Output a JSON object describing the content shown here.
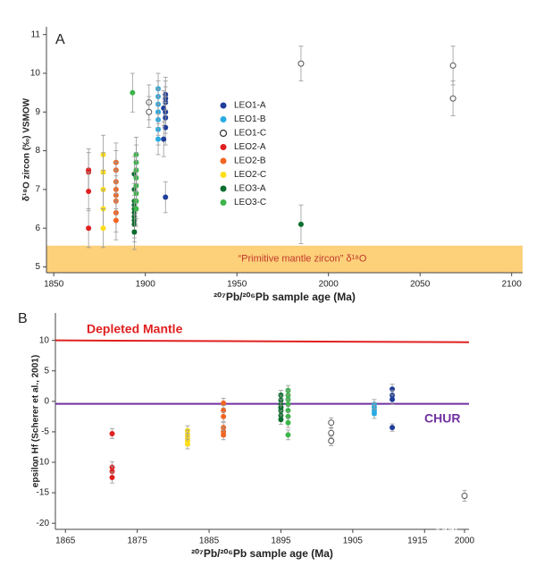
{
  "chart_data": [
    {
      "type": "scatter",
      "panel": "A",
      "ylabel": "δ¹⁸O zircon (‰) VSMOW",
      "xlabel": "²⁰⁷Pb/²⁰⁶Pb sample age (Ma)",
      "xlim": [
        1846,
        2106
      ],
      "xticks": [
        1850,
        1900,
        1950,
        2000,
        2050,
        2100
      ],
      "ylim": [
        4.85,
        11.2
      ],
      "yticks": [
        5,
        6,
        7,
        8,
        9,
        10,
        11
      ],
      "band": {
        "label": "“Primitive mantle zircon” δ¹⁸O",
        "range": [
          4.85,
          5.55
        ],
        "color": "#fdd07a"
      },
      "series": [
        {
          "name": "LEO1-A",
          "color": "#1f3e99",
          "marker": "filled",
          "x": [
            1911,
            1911,
            1911,
            1910,
            1911,
            1911,
            1911,
            1910,
            1911
          ],
          "values": [
            9.45,
            9.35,
            9.25,
            9.1,
            9.0,
            8.85,
            8.6,
            8.3,
            6.8
          ],
          "errors": [
            0.45,
            0.45,
            0.4,
            0.45,
            0.4,
            0.4,
            0.45,
            0.45,
            0.4
          ]
        },
        {
          "name": "LEO1-B",
          "color": "#29abe2",
          "marker": "filled",
          "x": [
            1907,
            1907,
            1907,
            1907,
            1907,
            1907,
            1907
          ],
          "values": [
            9.6,
            9.4,
            9.2,
            9.0,
            8.8,
            8.55,
            8.3
          ],
          "errors": [
            0.4,
            0.4,
            0.4,
            0.4,
            0.4,
            0.4,
            0.4
          ]
        },
        {
          "name": "LEO1-C",
          "color": "#555555",
          "marker": "open",
          "x": [
            1902,
            1902,
            1985,
            2068,
            2068
          ],
          "values": [
            9.25,
            9.0,
            10.25,
            10.2,
            9.35
          ],
          "errors": [
            0.45,
            0.4,
            0.45,
            0.5,
            0.45
          ]
        },
        {
          "name": "LEO2-A",
          "color": "#e02020",
          "marker": "filled",
          "x": [
            1869,
            1869,
            1869,
            1869
          ],
          "values": [
            7.5,
            7.45,
            6.95,
            6.0
          ],
          "errors": [
            0.55,
            0.5,
            0.5,
            0.5
          ]
        },
        {
          "name": "LEO2-B",
          "color": "#f26522",
          "marker": "filled",
          "x": [
            1884,
            1884,
            1884,
            1884,
            1884,
            1884,
            1884,
            1884
          ],
          "values": [
            7.7,
            7.5,
            7.2,
            7.0,
            6.85,
            6.7,
            6.4,
            6.2
          ],
          "errors": [
            0.5,
            0.5,
            0.5,
            0.5,
            0.5,
            0.5,
            0.5,
            0.5
          ]
        },
        {
          "name": "LEO2-C",
          "color": "#ffde17",
          "marker": "filled",
          "x": [
            1877,
            1877,
            1877,
            1877,
            1877
          ],
          "values": [
            7.9,
            7.45,
            7.0,
            6.5,
            6.0
          ],
          "errors": [
            0.5,
            0.5,
            0.5,
            0.5,
            0.5
          ]
        },
        {
          "name": "LEO3-A",
          "color": "#0b6e2e",
          "marker": "filled",
          "x": [
            1894,
            1894,
            1894,
            1894,
            1894,
            1894,
            1894,
            1894,
            1894,
            1894,
            1985
          ],
          "values": [
            7.4,
            7.0,
            6.7,
            6.6,
            6.5,
            6.4,
            6.3,
            6.2,
            6.1,
            5.9,
            6.1
          ],
          "errors": [
            0.45,
            0.45,
            0.45,
            0.45,
            0.45,
            0.45,
            0.45,
            0.45,
            0.45,
            0.45,
            0.5
          ]
        },
        {
          "name": "LEO3-C",
          "color": "#3cb54a",
          "marker": "filled",
          "x": [
            1893,
            1895,
            1895,
            1895,
            1895,
            1895,
            1895,
            1895,
            1895
          ],
          "values": [
            9.5,
            7.9,
            7.7,
            7.5,
            7.3,
            7.1,
            6.9,
            6.7,
            6.5
          ],
          "errors": [
            0.5,
            0.45,
            0.45,
            0.45,
            0.45,
            0.45,
            0.45,
            0.45,
            0.45
          ]
        }
      ]
    },
    {
      "type": "scatter",
      "panel": "B",
      "ylabel": "epsilon Hf (Scherer et al., 2001)",
      "xlabel": "²⁰⁷Pb/²⁰⁶Pb sample age (Ma)",
      "xlim": [
        1863.6,
        2001
      ],
      "xticks": [
        1865,
        1875,
        1885,
        1895,
        1905,
        1915,
        2000
      ],
      "x_break": true,
      "ylim": [
        -21,
        14.5
      ],
      "yticks": [
        10,
        5,
        0,
        -5,
        -10,
        -15,
        -20
      ],
      "lines": [
        {
          "name": "Depleted Mantle",
          "color": "#e02020",
          "values": [
            10,
            9.7
          ]
        },
        {
          "name": "CHUR",
          "color": "#7030a0",
          "values": [
            -0.4,
            -0.4
          ]
        }
      ],
      "series": [
        {
          "color": "#e02020",
          "marker": "filled",
          "x": [
            1871.5,
            1871.5,
            1871.5,
            1871.5
          ],
          "values": [
            -5.3,
            -10.8,
            -11.5,
            -12.5
          ],
          "errors": [
            0.8,
            0.9,
            0.9,
            0.9
          ]
        },
        {
          "color": "#ffde17",
          "marker": "filled",
          "x": [
            1882,
            1882,
            1882,
            1882,
            1882
          ],
          "values": [
            -4.8,
            -5.5,
            -6.0,
            -6.5,
            -7.0
          ],
          "errors": [
            0.8,
            0.8,
            0.8,
            0.8,
            0.8
          ]
        },
        {
          "color": "#f26522",
          "marker": "filled",
          "x": [
            1887,
            1887,
            1887,
            1887,
            1887,
            1887
          ],
          "values": [
            -0.3,
            -1.5,
            -2.5,
            -4.3,
            -5.0,
            -5.5
          ],
          "errors": [
            0.8,
            0.8,
            0.8,
            0.8,
            0.8,
            0.8
          ]
        },
        {
          "color": "#0b6e2e",
          "marker": "filled",
          "x": [
            1895,
            1895,
            1895,
            1895,
            1895,
            1895,
            1895
          ],
          "values": [
            1.0,
            0.2,
            -0.5,
            -1.0,
            -1.5,
            -2.3,
            -3.0
          ],
          "errors": [
            0.8,
            0.8,
            0.8,
            0.8,
            0.8,
            0.8,
            0.8
          ]
        },
        {
          "color": "#3cb54a",
          "marker": "filled",
          "x": [
            1896,
            1896,
            1896,
            1896,
            1896,
            1896,
            1896,
            1896
          ],
          "values": [
            1.8,
            1.0,
            0.3,
            -0.5,
            -1.5,
            -2.5,
            -3.5,
            -5.5
          ],
          "errors": [
            0.8,
            0.8,
            0.8,
            0.8,
            0.8,
            0.8,
            0.8,
            0.8
          ]
        },
        {
          "color": "#555555",
          "marker": "open",
          "x": [
            1902,
            1902,
            1902,
            2000
          ],
          "values": [
            -3.5,
            -5.2,
            -6.5,
            -15.5
          ],
          "errors": [
            0.8,
            0.8,
            0.8,
            0.9
          ]
        },
        {
          "color": "#29abe2",
          "marker": "filled",
          "x": [
            1908,
            1908,
            1908,
            1908
          ],
          "values": [
            -0.5,
            -1.0,
            -1.5,
            -2.0
          ],
          "errors": [
            0.8,
            0.8,
            0.8,
            0.8
          ]
        },
        {
          "color": "#1f3e99",
          "marker": "filled",
          "x": [
            1910.5,
            1910.5,
            1910.5,
            1910.5
          ],
          "values": [
            2.0,
            1.0,
            0.3,
            -4.3
          ],
          "errors": [
            0.8,
            0.8,
            0.8,
            0.6
          ]
        }
      ]
    }
  ]
}
